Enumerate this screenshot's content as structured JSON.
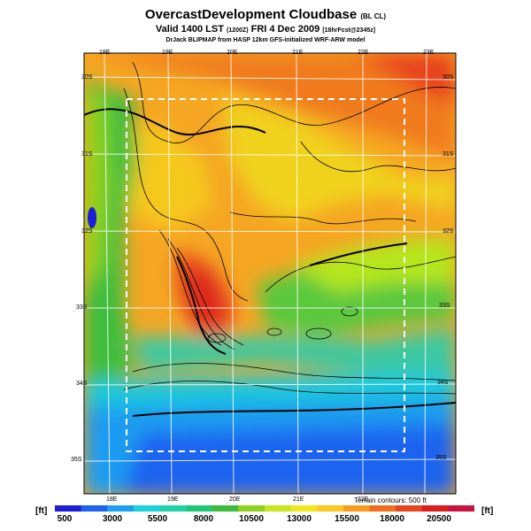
{
  "header": {
    "title": "OvercastDevelopment Cloudbase",
    "title_suffix": "(BL CL)",
    "valid_prefix": "Valid 1400 LST",
    "valid_utc": "(1200Z)",
    "valid_date": "FRI 4 Dec 2009",
    "forecast": "[18hrFcst@2345z]",
    "credit": "DrJack BLIPMAP from HASP 12km GFS-initialized WRF-ARW model"
  },
  "map": {
    "top_lon_labels": [
      "18E",
      "19E",
      "20E",
      "21E",
      "22E",
      "23E"
    ],
    "bottom_lon_labels": [
      "18E",
      "19E",
      "20E",
      "21E",
      "22E"
    ],
    "left_lat_labels": [
      "30S",
      "31S",
      "32S",
      "33S",
      "34S",
      "35S"
    ],
    "right_lat_labels": [
      "30S",
      "31S",
      "32S",
      "33S",
      "34S",
      "35S"
    ],
    "terrain_note": "Terrain contours: 500 ft"
  },
  "colorbar": {
    "unit": "[ft]",
    "labels": [
      "500",
      "3000",
      "5500",
      "8000",
      "10500",
      "13000",
      "15500",
      "18000",
      "20500"
    ],
    "colors": [
      "#1e1ed8",
      "#1e64f0",
      "#1ea0f0",
      "#1ed2dc",
      "#1ed2aa",
      "#1ec878",
      "#3cbe3c",
      "#8cd21e",
      "#c8e61e",
      "#f0e61e",
      "#fac81e",
      "#fa9b1e",
      "#f06e1e",
      "#e6461e",
      "#dc1e1e",
      "#c8143c"
    ]
  }
}
